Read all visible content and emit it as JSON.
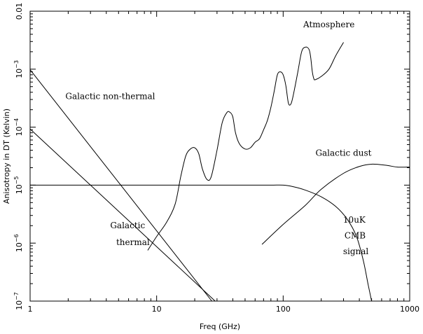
{
  "chart_data": {
    "type": "line",
    "title": "",
    "xlabel": "Freq (GHz)",
    "ylabel": "Anisotropy in DT (Kelvin)",
    "xscale": "log",
    "yscale": "log",
    "xlim": [
      1,
      1000
    ],
    "ylim": [
      1e-07,
      0.01
    ],
    "grid": false,
    "x_ticks": [
      {
        "value": 1,
        "label": "1"
      },
      {
        "value": 10,
        "label": "10"
      },
      {
        "value": 100,
        "label": "100"
      },
      {
        "value": 1000,
        "label": "1000"
      }
    ],
    "y_ticks": [
      {
        "value": 1e-07,
        "base": "10",
        "exp": "−7"
      },
      {
        "value": 1e-06,
        "base": "10",
        "exp": "−6"
      },
      {
        "value": 1e-05,
        "base": "10",
        "exp": "−5"
      },
      {
        "value": 0.0001,
        "base": "10",
        "exp": "−4"
      },
      {
        "value": 0.001,
        "base": "10",
        "exp": "−3"
      },
      {
        "value": 0.01,
        "plain": "0.01"
      }
    ],
    "series": [
      {
        "name": "Galactic non-thermal",
        "x": [
          1,
          27.3
        ],
        "y": [
          0.00098,
          1e-07
        ]
      },
      {
        "name": "Galactic thermal",
        "x": [
          1,
          29
        ],
        "y": [
          9.3e-05,
          1e-07
        ]
      },
      {
        "name": "10uK CMB signal",
        "x": [
          1,
          50,
          80,
          100,
          120,
          150,
          200,
          260,
          320,
          380,
          430,
          470,
          500
        ],
        "y": [
          1e-05,
          1e-05,
          1e-05,
          1e-05,
          9.4e-06,
          8.2e-06,
          6.3e-06,
          4.3e-06,
          2.6e-06,
          1.3e-06,
          5e-07,
          1.9e-07,
          1e-07
        ]
      },
      {
        "name": "Galactic dust",
        "x": [
          68,
          100,
          150,
          200,
          300,
          400,
          500,
          650,
          800,
          1000
        ],
        "y": [
          9.5e-07,
          2.1e-06,
          4.5e-06,
          8.5e-06,
          1.6e-05,
          2.1e-05,
          2.3e-05,
          2.2e-05,
          2.05e-05,
          2.05e-05
        ]
      },
      {
        "name": "Atmosphere",
        "x": [
          8.5,
          10,
          12,
          14,
          15.5,
          17,
          18.5,
          20,
          21.5,
          23,
          25,
          27,
          30,
          33,
          36,
          38,
          40,
          42,
          45,
          50,
          55,
          60,
          65,
          70,
          75,
          80,
          85,
          90,
          95,
          100,
          105,
          110,
          115,
          120,
          130,
          140,
          150,
          160,
          165,
          170,
          175,
          180,
          200,
          230,
          260,
          300
        ],
        "y": [
          7.5e-07,
          1.3e-06,
          2.3e-06,
          4.7e-06,
          1.4e-05,
          3.2e-05,
          4.2e-05,
          4.4e-05,
          3.5e-05,
          1.9e-05,
          1.25e-05,
          1.4e-05,
          4e-05,
          0.00012,
          0.00018,
          0.00018,
          0.00015,
          8e-05,
          5.2e-05,
          4.2e-05,
          4.4e-05,
          5.5e-05,
          6.3e-05,
          9e-05,
          0.00013,
          0.00022,
          0.00042,
          0.0008,
          0.0009,
          0.0008,
          0.00052,
          0.00026,
          0.00025,
          0.00035,
          0.00085,
          0.002,
          0.0024,
          0.0022,
          0.0016,
          0.0009,
          0.00068,
          0.00066,
          0.00075,
          0.001,
          0.0017,
          0.0029
        ]
      }
    ],
    "annotations": [
      {
        "text": "Atmosphere",
        "x": 230,
        "y": 0.0053,
        "anchor": "middle"
      },
      {
        "text": "Galactic non-thermal",
        "x": 1.9,
        "y": 0.000305,
        "anchor": "start"
      },
      {
        "text": "Galactic dust",
        "x": 180,
        "y": 3.2e-05,
        "anchor": "start"
      },
      {
        "text": "Galactic",
        "x": 5.9,
        "y": 1.8e-06,
        "anchor": "middle"
      },
      {
        "text": "thermal",
        "x": 6.5,
        "y": 9.3e-07,
        "anchor": "middle"
      },
      {
        "text": "10uK",
        "x": 365,
        "y": 2.25e-06,
        "anchor": "middle"
      },
      {
        "text": "CMB",
        "x": 370,
        "y": 1.2e-06,
        "anchor": "middle"
      },
      {
        "text": "signal",
        "x": 375,
        "y": 6.4e-07,
        "anchor": "middle"
      }
    ]
  }
}
